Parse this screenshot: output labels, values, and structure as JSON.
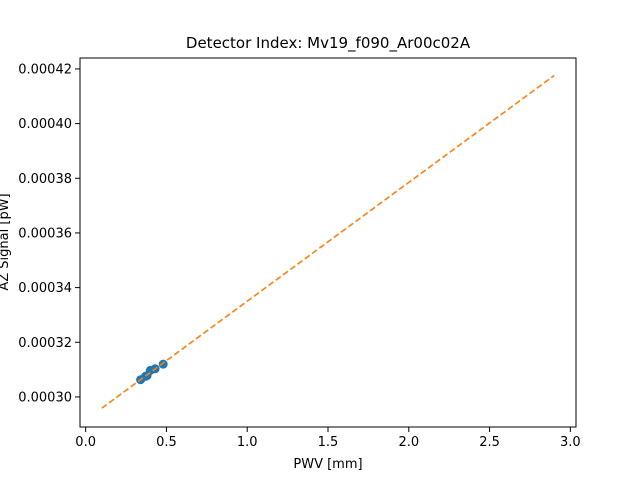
{
  "chart_data": {
    "type": "scatter",
    "title": "Detector Index: Mv19_f090_Ar00c02A",
    "xlabel": "PWV [mm]",
    "ylabel": "AZ Signal [pW]",
    "xlim": [
      -0.035,
      3.035
    ],
    "ylim": [
      0.000289,
      0.000424
    ],
    "xticks": [
      0.0,
      0.5,
      1.0,
      1.5,
      2.0,
      2.5,
      3.0
    ],
    "xtick_labels": [
      "0.0",
      "0.5",
      "1.0",
      "1.5",
      "2.0",
      "2.5",
      "3.0"
    ],
    "yticks": [
      0.0003,
      0.00032,
      0.00034,
      0.00036,
      0.00038,
      0.0004,
      0.00042
    ],
    "ytick_labels": [
      "0.00030",
      "0.00032",
      "0.00034",
      "0.00036",
      "0.00038",
      "0.00040",
      "0.00042"
    ],
    "grid": false,
    "series": [
      {
        "name": "data",
        "kind": "scatter",
        "color": "#1f77b4",
        "x": [
          0.34,
          0.37,
          0.38,
          0.4,
          0.43,
          0.48
        ],
        "y": [
          0.0003063,
          0.0003075,
          0.0003078,
          0.0003097,
          0.0003103,
          0.000312
        ]
      },
      {
        "name": "fit",
        "kind": "line",
        "style": "dashed",
        "color": "#ff7f0e",
        "x": [
          0.1,
          2.9
        ],
        "y": [
          0.0002959,
          0.0004176
        ]
      }
    ]
  }
}
